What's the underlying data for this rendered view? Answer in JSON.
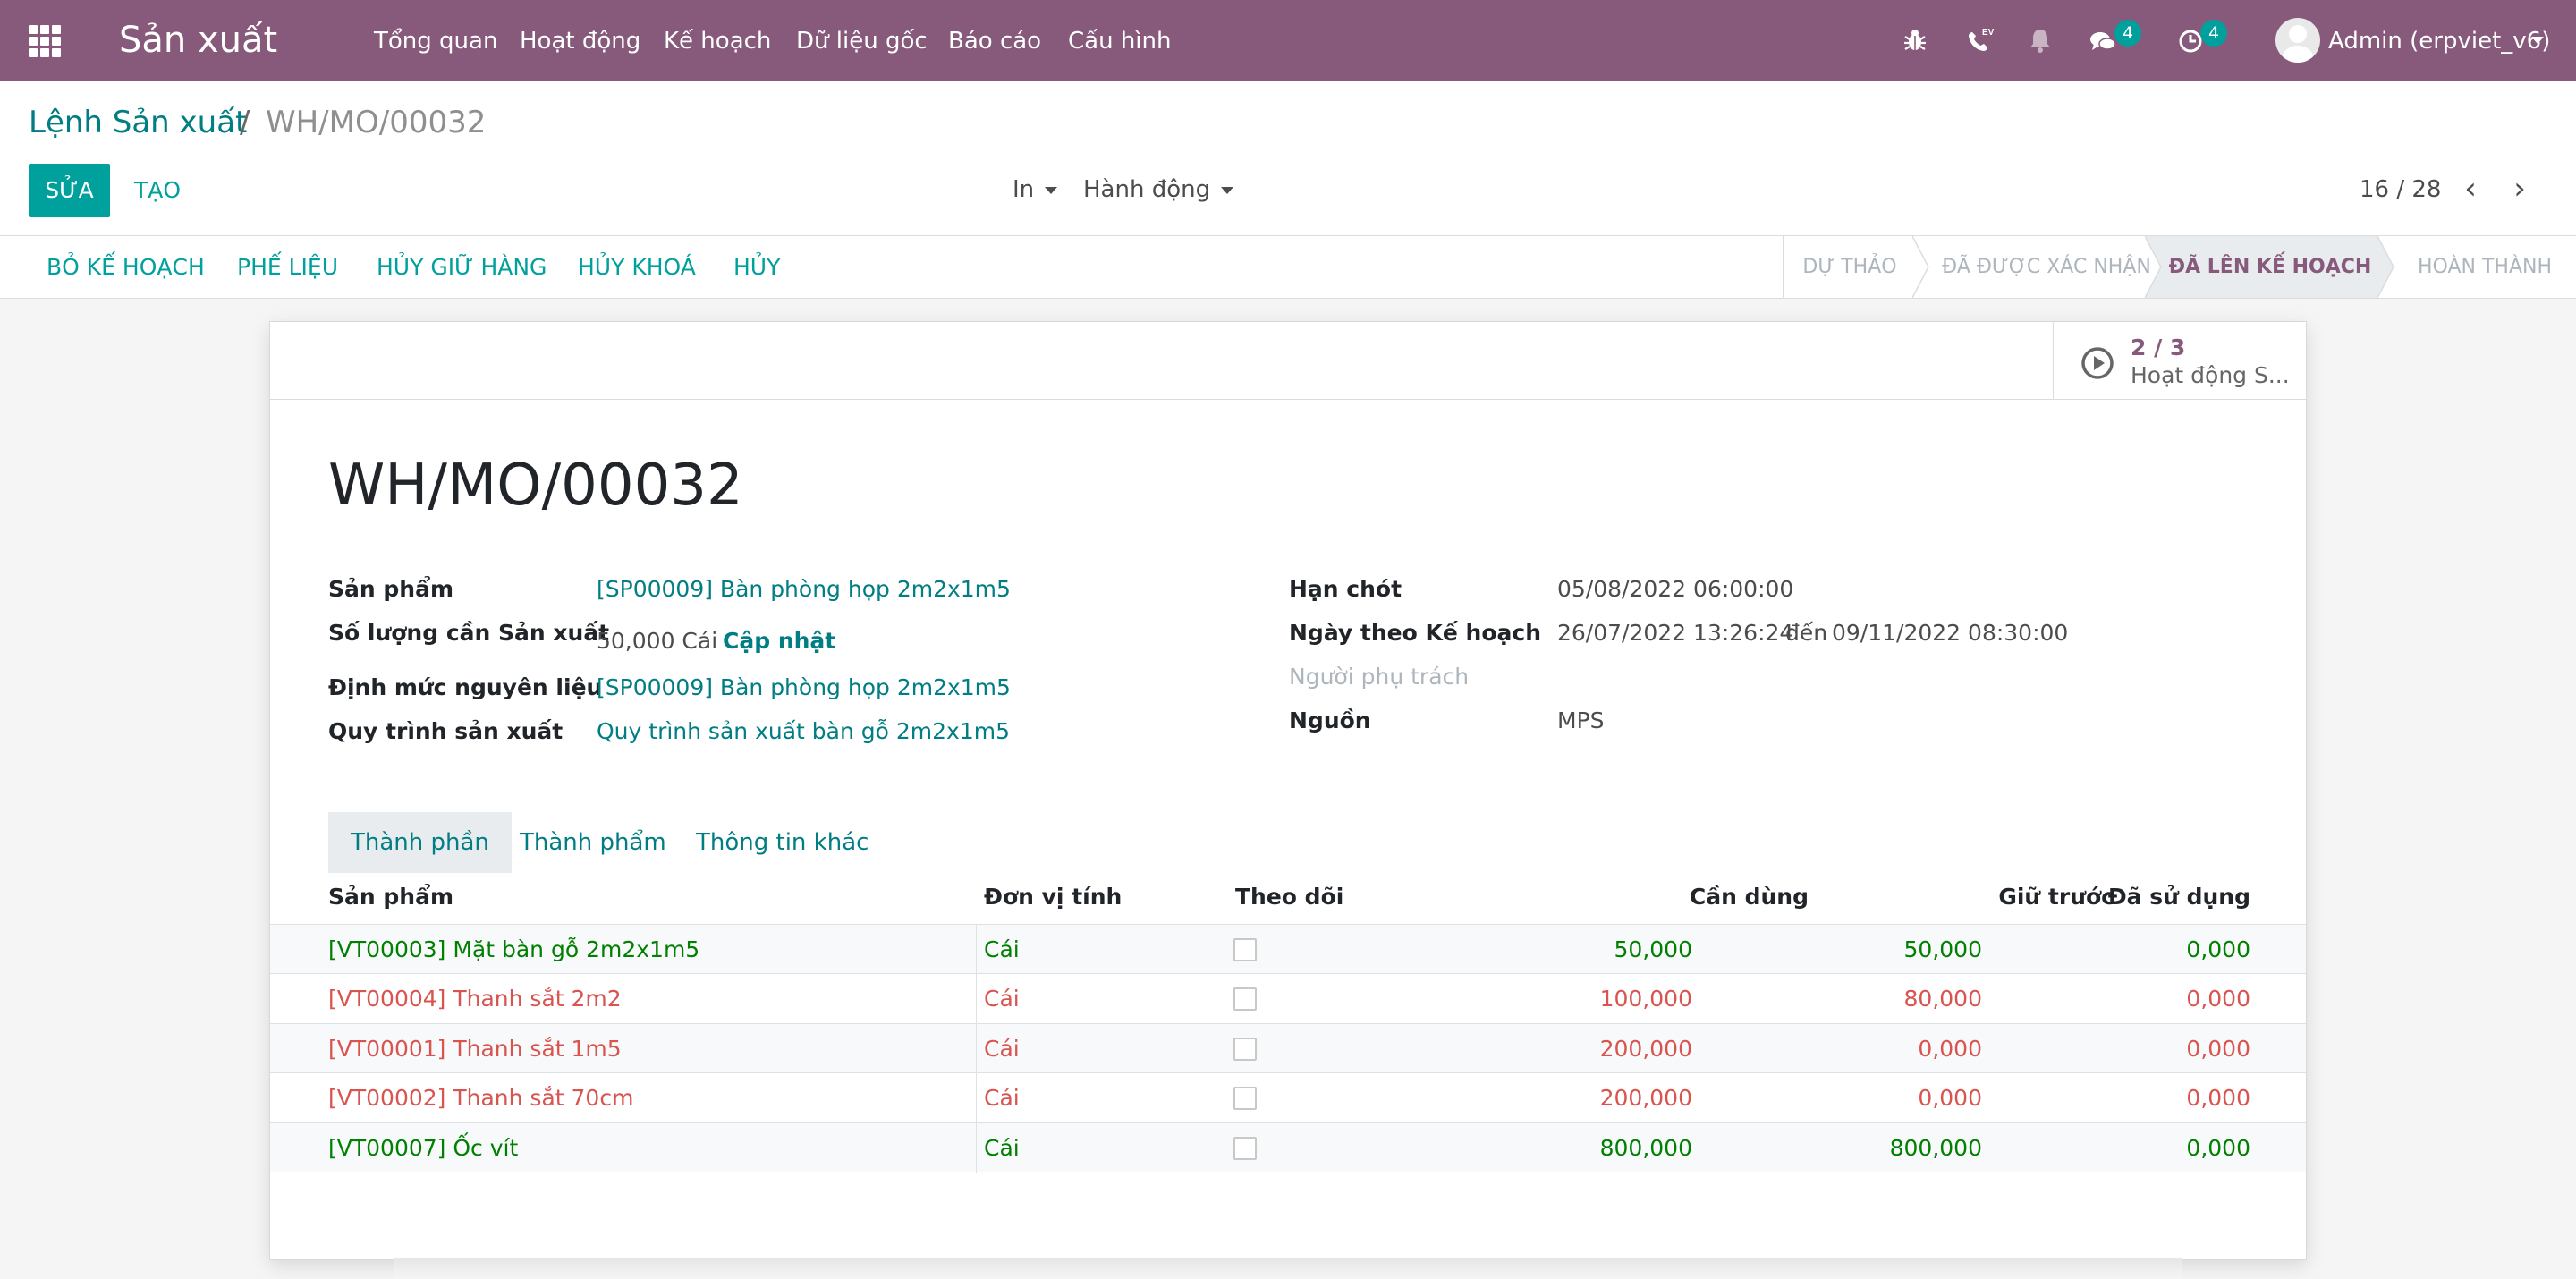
{
  "navbar": {
    "brand": "Sản xuất",
    "menu": [
      "Tổng quan",
      "Hoạt động",
      "Kế hoạch",
      "Dữ liệu gốc",
      "Báo cáo",
      "Cấu hình"
    ],
    "ev_label": "EV",
    "messages_count": "4",
    "activities_count": "4",
    "user": "Admin (erpviet_v6)"
  },
  "breadcrumb": {
    "parent": "Lệnh Sản xuất",
    "separator": "/",
    "current": "WH/MO/00032"
  },
  "toolbar": {
    "edit_label": "SỬA",
    "create_label": "TẠO",
    "print_label": "In",
    "action_label": "Hành động",
    "pager": "16 / 28"
  },
  "statusbar": {
    "buttons": [
      "BỎ KẾ HOẠCH",
      "PHẾ LIỆU",
      "HỦY GIỮ HÀNG",
      "HỦY KHOÁ",
      "HỦY"
    ],
    "stages": [
      "DỰ THẢO",
      "ĐÃ ĐƯỢC XÁC NHẬN",
      "ĐÃ LÊN KẾ HOẠCH",
      "HOÀN THÀNH"
    ],
    "active_stage": "ĐÃ LÊN KẾ HOẠCH"
  },
  "smart_button": {
    "value": "2 / 3",
    "label": "Hoạt động S..."
  },
  "record": {
    "title": "WH/MO/00032",
    "left_fields": {
      "product_label": "Sản phẩm",
      "product_value": "[SP00009] Bàn phòng họp 2m2x1m5",
      "qty_label": "Số lượng cần Sản xuất",
      "qty_value": "50,000 Cái",
      "qty_update": "Cập nhật",
      "bom_label": "Định mức nguyên liệu",
      "bom_value": "[SP00009] Bàn phòng họp 2m2x1m5",
      "routing_label": "Quy trình sản xuất",
      "routing_value": "Quy trình sản xuất bàn gỗ 2m2x1m5"
    },
    "right_fields": {
      "deadline_label": "Hạn chót",
      "deadline_value": "05/08/2022 06:00:00",
      "planned_label": "Ngày theo Kế hoạch",
      "planned_value": "26/07/2022 13:26:24",
      "planned_to": "đến",
      "planned_end": "09/11/2022 08:30:00",
      "responsible_label": "Người phụ trách",
      "origin_label": "Nguồn",
      "origin_value": "MPS"
    }
  },
  "tabs": [
    "Thành phần",
    "Thành phẩm",
    "Thông tin khác"
  ],
  "table": {
    "headers": [
      "Sản phẩm",
      "Đơn vị tính",
      "Theo dõi",
      "Cần dùng",
      "Giữ trước",
      "Đã sử dụng"
    ],
    "rows": [
      {
        "product": "[VT00003] Mặt bàn gỗ 2m2x1m5",
        "uom": "Cái",
        "to_consume": "50,000",
        "reserved": "50,000",
        "consumed": "0,000",
        "status": "ok"
      },
      {
        "product": "[VT00004] Thanh sắt 2m2",
        "uom": "Cái",
        "to_consume": "100,000",
        "reserved": "80,000",
        "consumed": "0,000",
        "status": "short"
      },
      {
        "product": "[VT00001] Thanh sắt 1m5",
        "uom": "Cái",
        "to_consume": "200,000",
        "reserved": "0,000",
        "consumed": "0,000",
        "status": "short"
      },
      {
        "product": "[VT00002] Thanh sắt 70cm",
        "uom": "Cái",
        "to_consume": "200,000",
        "reserved": "0,000",
        "consumed": "0,000",
        "status": "short"
      },
      {
        "product": "[VT00007] Ốc vít",
        "uom": "Cái",
        "to_consume": "800,000",
        "reserved": "800,000",
        "consumed": "0,000",
        "status": "ok"
      }
    ]
  },
  "colors": {
    "brand": "#875a7b",
    "accent": "#00a09d",
    "link": "#017e84",
    "ok_row": "#008000",
    "short_row": "#d9534f"
  }
}
